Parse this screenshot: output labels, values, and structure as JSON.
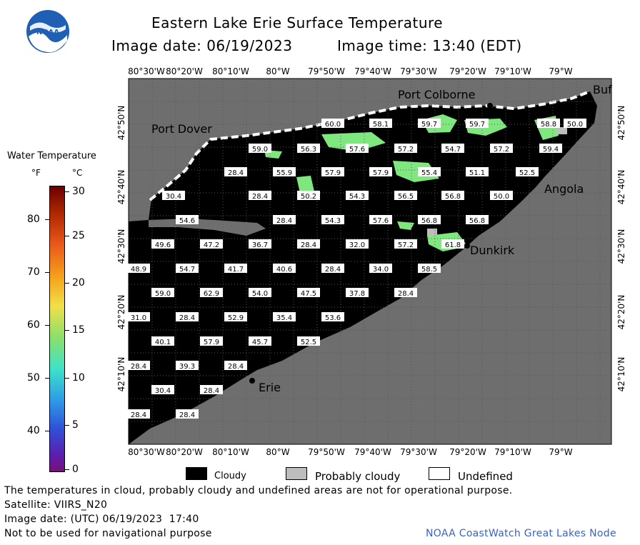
{
  "header": {
    "agency_logo_text": "NOAA",
    "title": "Eastern Lake Erie Surface Temperature",
    "image_date": "Image date: 06/19/2023",
    "image_time": "Image time: 13:40 (EDT)"
  },
  "colorbar": {
    "title": "Water Temperature",
    "unit_f": "°F",
    "unit_c": "°C",
    "f_ticks": [
      "80",
      "70",
      "60",
      "50",
      "40"
    ],
    "c_ticks": [
      "30",
      "25",
      "20",
      "15",
      "10",
      "5",
      "0"
    ]
  },
  "axes": {
    "longitude_labels": [
      "80°30'W",
      "80°20'W",
      "80°10'W",
      "80°W",
      "79°50'W",
      "79°40'W",
      "79°30'W",
      "79°20'W",
      "79°10'W",
      "79°W"
    ],
    "latitude_labels": [
      "42°50'N",
      "42°40'N",
      "42°30'N",
      "42°20'N",
      "42°10'N"
    ]
  },
  "places": [
    "Port Colborne",
    "Buf",
    "Port Dover",
    "Angola",
    "Dunkirk",
    "Erie"
  ],
  "temperature_labels": [
    [
      "60.0",
      "58.1",
      "59.7",
      "59.7",
      "58.8",
      "50.0"
    ],
    [
      "59.0",
      "56.3",
      "57.6",
      "57.2",
      "54.7",
      "57.2",
      "59.4"
    ],
    [
      "28.4",
      "55.9",
      "57.9",
      "57.9",
      "55.4",
      "51.1",
      "52.5"
    ],
    [
      "30.4",
      "28.4",
      "50.2",
      "54.3",
      "56.5",
      "56.8",
      "50.0"
    ],
    [
      "54.6",
      "28.4",
      "54.3",
      "57.6",
      "56.8",
      "56.8"
    ],
    [
      "49.6",
      "47.2",
      "36.7",
      "28.4",
      "32.0",
      "57.2",
      "61.8"
    ],
    [
      "48.9",
      "54.7",
      "41.7",
      "40.6",
      "28.4",
      "34.0",
      "58.5"
    ],
    [
      "59.0",
      "62.9",
      "54.0",
      "47.5",
      "37.8",
      "28.4"
    ],
    [
      "31.0",
      "28.4",
      "52.9",
      "35.4",
      "53.6"
    ],
    [
      "40.1",
      "57.9",
      "45.7",
      "52.5"
    ],
    [
      "28.4",
      "39.3",
      "28.4"
    ],
    [
      "30.4",
      "28.4"
    ],
    [
      "28.4",
      "28.4"
    ]
  ],
  "legend": {
    "cloudy": "Cloudy",
    "probably_cloudy": "Probably cloudy",
    "undefined": "Undefined"
  },
  "footer": {
    "disclaimer": "The temperatures in cloud, probably cloudy and undefined areas are not for operational purpose.",
    "satellite": "Satellite: VIIRS_N20",
    "utc_date": "Image date: (UTC) 06/19/2023  17:40",
    "navigation_note": "Not to be used for navigational purpose",
    "source": "NOAA CoastWatch Great Lakes Node"
  },
  "colors": {
    "land": "#6e6e6e",
    "cloud": "#000000",
    "probably_cloudy": "#bdbdbd",
    "undefined": "#ffffff",
    "water_green": "#7ee87e",
    "source_link": "#3a63c7"
  }
}
